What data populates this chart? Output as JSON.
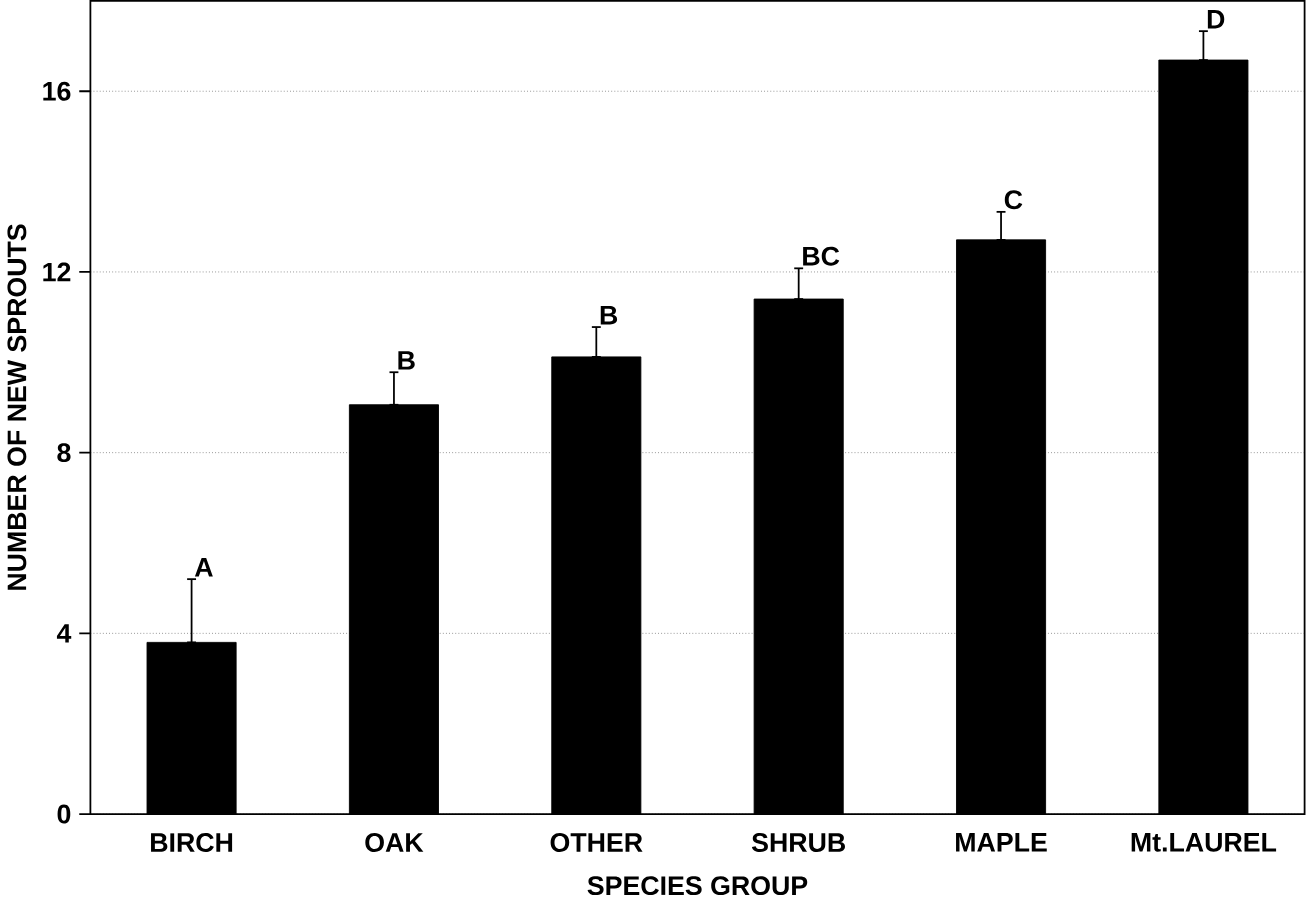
{
  "chart_data": {
    "type": "bar",
    "xlabel": "SPECIES GROUP",
    "ylabel": "NUMBER OF NEW SPROUTS",
    "categories": [
      "BIRCH",
      "OAK",
      "OTHER",
      "SHRUB",
      "MAPLE",
      "Mt.LAUREL"
    ],
    "values": [
      3.8,
      9.06,
      10.12,
      11.4,
      12.71,
      16.69
    ],
    "errors": [
      [
        3.8,
        5.2
      ],
      [
        9.06,
        9.78
      ],
      [
        10.12,
        10.78
      ],
      [
        11.4,
        12.08
      ],
      [
        12.71,
        13.33
      ],
      [
        16.69,
        17.33
      ]
    ],
    "color": "#000000",
    "ylim": [
      0,
      18
    ],
    "yticks": [
      0,
      4,
      8,
      12,
      16
    ],
    "grid": "y",
    "annotations": [
      {
        "text": "A",
        "x": "BIRCH",
        "y": 5.2
      },
      {
        "text": "B",
        "x": "OAK",
        "y": 9.78
      },
      {
        "text": "B",
        "x": "OTHER",
        "y": 10.78
      },
      {
        "text": "BC",
        "x": "SHRUB",
        "y": 12.08
      },
      {
        "text": "C",
        "x": "MAPLE",
        "y": 13.33
      },
      {
        "text": "D",
        "x": "Mt.LAUREL",
        "y": 17.33
      }
    ]
  }
}
